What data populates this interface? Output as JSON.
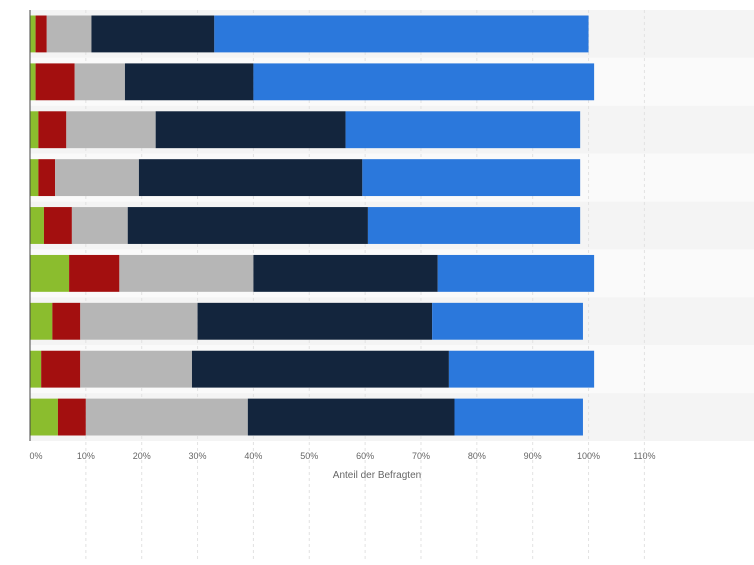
{
  "chart_data": {
    "type": "bar",
    "orientation": "horizontal",
    "stacked": true,
    "xlabel": "Anteil der Befragten",
    "xlim": [
      0,
      120
    ],
    "x_ticks": [
      0,
      10,
      20,
      30,
      40,
      50,
      60,
      70,
      80,
      90,
      100,
      110
    ],
    "x_tick_labels": [
      "0%",
      "10%",
      "20%",
      "30%",
      "40%",
      "50%",
      "60%",
      "70%",
      "80%",
      "90%",
      "100%",
      "110%"
    ],
    "grid": true,
    "legend": "none",
    "colors": [
      "#8bbd2e",
      "#a30f0f",
      "#b6b6b6",
      "#13253d",
      "#2b78dc"
    ],
    "band_colors": [
      "#f4f4f4",
      "#fafafa"
    ],
    "series": [
      {
        "values": [
          1,
          1,
          1.5,
          1.5,
          2.5,
          7,
          4,
          2,
          5
        ]
      },
      {
        "values": [
          2,
          7,
          5,
          3,
          5,
          9,
          5,
          7,
          5
        ]
      },
      {
        "values": [
          8,
          9,
          16,
          15,
          10,
          24,
          21,
          20,
          29
        ]
      },
      {
        "values": [
          22,
          23,
          34,
          40,
          43,
          33,
          42,
          46,
          37
        ]
      },
      {
        "values": [
          67,
          61,
          42,
          39,
          38,
          28,
          27,
          26,
          23
        ]
      }
    ]
  }
}
